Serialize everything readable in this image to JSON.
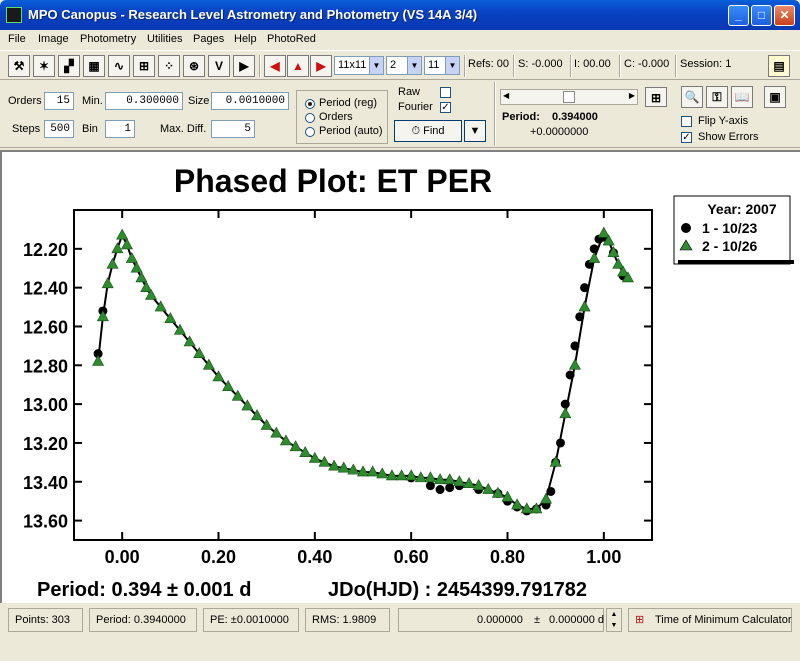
{
  "window": {
    "title": "MPO Canopus - Research Level Astrometry and Photometry (VS 14A 3/4)"
  },
  "menu": [
    "File",
    "Image",
    "Photometry",
    "Utilities",
    "Pages",
    "Help",
    "PhotoRed"
  ],
  "toolbar": {
    "grid_select": "11x11",
    "select_two": "2",
    "select_three": "11",
    "refs": "Refs: 00",
    "s": "S: -0.000",
    "i": "I: 00.00",
    "c": "C: -0.000",
    "session": "Session: 1"
  },
  "params": {
    "orders_label": "Orders",
    "orders": "15",
    "min_label": "Min.",
    "min": "0.300000",
    "size_label": "Size",
    "size": "0.0010000",
    "steps_label": "Steps",
    "steps": "500",
    "bin_label": "Bin",
    "bin": "1",
    "maxdiff_label": "Max. Diff.",
    "maxdiff": "5",
    "radio_period_reg": "Period (reg)",
    "radio_orders": "Orders",
    "radio_period_auto": "Period (auto)",
    "raw_label": "Raw",
    "raw_checked": false,
    "fourier_label": "Fourier",
    "fourier_checked": true,
    "find_button": "Find",
    "period_label": "Period:",
    "period_value": "0.394000",
    "period_offset": "+0.0000000",
    "flip_y_label": "Flip Y-axis",
    "flip_y_checked": false,
    "show_errors_label": "Show Errors",
    "show_errors_checked": true
  },
  "status": {
    "points": "Points: 303",
    "period": "Period: 0.3940000",
    "pe": "PE: ±0.0010000",
    "rms": "RMS: 1.9809",
    "tmin_a": "0.000000",
    "tmin_pm": "±",
    "tmin_b": "0.000000 d",
    "tmin_button": "Time of Minimum Calculator"
  },
  "chart_data": {
    "type": "scatter",
    "title": "Phased Plot: ET PER",
    "footer_left": "Period: 0.394 ± 0.001 d",
    "footer_right": "JDo(HJD) : 2454399.791782",
    "xlim": [
      -0.1,
      1.1
    ],
    "ylim": [
      13.7,
      12.0
    ],
    "y_inverted": true,
    "x_ticks": [
      "0.00",
      "0.20",
      "0.40",
      "0.60",
      "0.80",
      "1.00"
    ],
    "y_ticks": [
      "12.20",
      "12.40",
      "12.60",
      "12.80",
      "13.00",
      "13.20",
      "13.40",
      "13.60"
    ],
    "legend": {
      "title": "Year: 2007",
      "placement": "top-right"
    },
    "series": [
      {
        "name": "1 - 10/23",
        "marker": "circle",
        "color": "#000000",
        "x": [
          -0.05,
          -0.04,
          0.6,
          0.64,
          0.66,
          0.68,
          0.7,
          0.74,
          0.78,
          0.8,
          0.82,
          0.84,
          0.86,
          0.88,
          0.89,
          0.9,
          0.91,
          0.92,
          0.93,
          0.94,
          0.95,
          0.96,
          0.97,
          0.98,
          0.99,
          1.0,
          1.02,
          1.04
        ],
        "y": [
          12.74,
          12.52,
          13.38,
          13.42,
          13.44,
          13.43,
          13.42,
          13.44,
          13.46,
          13.5,
          13.53,
          13.55,
          13.54,
          13.52,
          13.45,
          13.3,
          13.2,
          13.0,
          12.85,
          12.7,
          12.55,
          12.4,
          12.28,
          12.2,
          12.15,
          12.14,
          12.22,
          12.34
        ]
      },
      {
        "name": "2 - 10/26",
        "marker": "triangle",
        "color": "#2e8b2e",
        "x": [
          -0.05,
          -0.04,
          -0.03,
          -0.02,
          -0.01,
          0.0,
          0.01,
          0.02,
          0.03,
          0.04,
          0.05,
          0.06,
          0.08,
          0.1,
          0.12,
          0.14,
          0.16,
          0.18,
          0.2,
          0.22,
          0.24,
          0.26,
          0.28,
          0.3,
          0.32,
          0.34,
          0.36,
          0.38,
          0.4,
          0.42,
          0.44,
          0.46,
          0.48,
          0.5,
          0.52,
          0.54,
          0.56,
          0.58,
          0.6,
          0.62,
          0.64,
          0.66,
          0.68,
          0.7,
          0.72,
          0.74,
          0.76,
          0.78,
          0.8,
          0.82,
          0.84,
          0.86,
          0.88,
          0.9,
          0.92,
          0.94,
          0.96,
          0.98,
          1.0,
          1.01,
          1.02,
          1.03,
          1.04,
          1.05
        ],
        "y": [
          12.78,
          12.55,
          12.38,
          12.28,
          12.2,
          12.13,
          12.18,
          12.25,
          12.3,
          12.35,
          12.4,
          12.44,
          12.5,
          12.56,
          12.62,
          12.68,
          12.74,
          12.8,
          12.86,
          12.91,
          12.96,
          13.01,
          13.06,
          13.11,
          13.15,
          13.19,
          13.22,
          13.25,
          13.28,
          13.3,
          13.32,
          13.33,
          13.34,
          13.35,
          13.35,
          13.36,
          13.37,
          13.37,
          13.37,
          13.38,
          13.38,
          13.39,
          13.39,
          13.4,
          13.41,
          13.42,
          13.44,
          13.46,
          13.48,
          13.52,
          13.54,
          13.54,
          13.49,
          13.3,
          13.05,
          12.8,
          12.5,
          12.25,
          12.12,
          12.16,
          12.22,
          12.28,
          12.32,
          12.35
        ]
      }
    ]
  }
}
